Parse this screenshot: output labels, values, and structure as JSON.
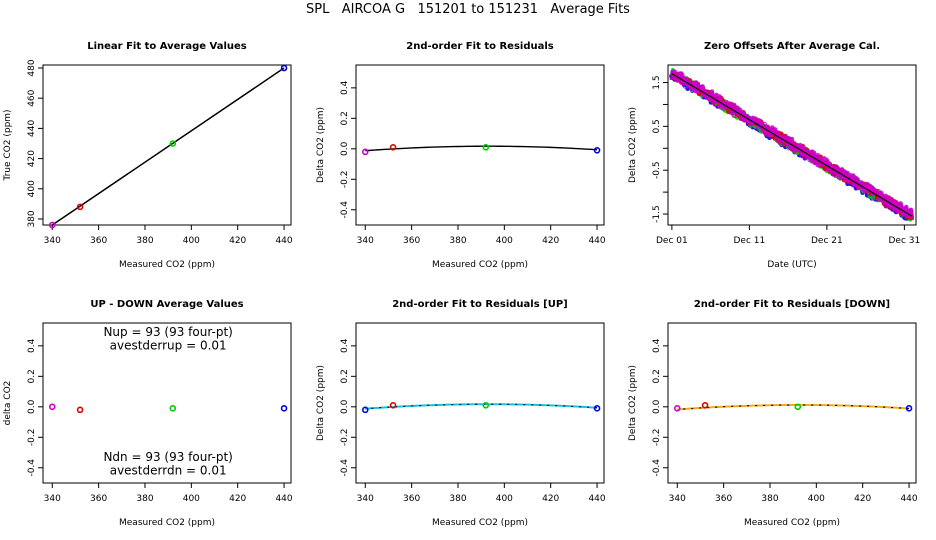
{
  "suptitle": "SPL   AIRCOA G   151201 to 151231   Average Fits",
  "chart_data": [
    {
      "type": "scatter",
      "title": "Linear Fit to Average Values",
      "xlabel": "Measured CO2 (ppm)",
      "ylabel": "True CO2 (ppm)",
      "xlim": [
        336,
        443
      ],
      "ylim": [
        376,
        482
      ],
      "xticks": [
        340,
        360,
        380,
        400,
        420,
        440
      ],
      "yticks": [
        380,
        400,
        420,
        440,
        460,
        480
      ],
      "points": [
        {
          "x": 340,
          "y": 376,
          "color": "#cc00cc"
        },
        {
          "x": 352,
          "y": 388,
          "color": "#e00000"
        },
        {
          "x": 392,
          "y": 430,
          "color": "#00cc00"
        },
        {
          "x": 440,
          "y": 480,
          "color": "#0000dd"
        }
      ],
      "lines": [
        {
          "x": [
            340,
            440
          ],
          "y": [
            376,
            480
          ],
          "color": "#000000"
        }
      ]
    },
    {
      "type": "scatter",
      "title": "2nd-order Fit to Residuals",
      "xlabel": "Measured CO2 (ppm)",
      "ylabel": "Delta CO2 (ppm)",
      "xlim": [
        336,
        443
      ],
      "ylim": [
        -0.5,
        0.55
      ],
      "xticks": [
        340,
        360,
        380,
        400,
        420,
        440
      ],
      "yticks": [
        -0.4,
        -0.2,
        0.0,
        0.2,
        0.4
      ],
      "points": [
        {
          "x": 340,
          "y": -0.02,
          "color": "#cc00cc"
        },
        {
          "x": 352,
          "y": 0.01,
          "color": "#e00000"
        },
        {
          "x": 392,
          "y": 0.01,
          "color": "#00cc00"
        },
        {
          "x": 440,
          "y": -0.01,
          "color": "#0000dd"
        }
      ],
      "curves": [
        {
          "type": "quadratic",
          "a": -1.05e-05,
          "h": 393,
          "k": 0.017,
          "xrange": [
            340,
            440
          ],
          "color": "#000000"
        }
      ]
    },
    {
      "type": "line",
      "title": "Zero Offsets After Average Cal.",
      "xlabel": "Date (UTC)",
      "ylabel": "Delta CO2 (ppm)",
      "xlim": [
        -0.5,
        31.5
      ],
      "ylim": [
        -1.75,
        1.9
      ],
      "xticks": [
        0,
        10,
        20,
        30
      ],
      "xticklabels": [
        "Dec 01",
        "Dec 11",
        "Dec 21",
        "Dec 31"
      ],
      "yticks": [
        -1.5,
        -1.0,
        -0.5,
        0.0,
        0.5,
        1.0,
        1.5
      ],
      "yticklabels": [
        "-1.5",
        "",
        "-0.5",
        "",
        "0.5",
        "",
        "1.5"
      ],
      "trend": {
        "x": [
          0,
          31
        ],
        "y": [
          1.7,
          -1.55
        ]
      },
      "series_colors": [
        "#0000dd",
        "#00cc00",
        "#e00000",
        "#cc00cc"
      ],
      "fit_color": "#000000"
    },
    {
      "type": "scatter",
      "title": "UP - DOWN Average Values",
      "xlabel": "Measured CO2 (ppm)",
      "ylabel": "delta CO2",
      "xlim": [
        336,
        443
      ],
      "ylim": [
        -0.5,
        0.55
      ],
      "xticks": [
        340,
        360,
        380,
        400,
        420,
        440
      ],
      "yticks": [
        -0.4,
        -0.2,
        0.0,
        0.2,
        0.4
      ],
      "points": [
        {
          "x": 340,
          "y": 0.0,
          "color": "#cc00cc"
        },
        {
          "x": 352,
          "y": -0.02,
          "color": "#e00000"
        },
        {
          "x": 392,
          "y": -0.01,
          "color": "#00cc00"
        },
        {
          "x": 440,
          "y": -0.01,
          "color": "#0000dd"
        }
      ],
      "annotations": [
        {
          "text": "Nup = 93 (93 four-pt)",
          "x": 390,
          "y": 0.465
        },
        {
          "text": "avestderrup =  0.01",
          "x": 390,
          "y": 0.375
        },
        {
          "text": "Ndn = 93 (93 four-pt)",
          "x": 390,
          "y": -0.355
        },
        {
          "text": "avestderrdn =  0.01",
          "x": 390,
          "y": -0.445
        }
      ]
    },
    {
      "type": "scatter",
      "title": "2nd-order Fit to Residuals [UP]",
      "xlabel": "Measured CO2 (ppm)",
      "ylabel": "Delta CO2 (ppm)",
      "xlim": [
        336,
        443
      ],
      "ylim": [
        -0.5,
        0.55
      ],
      "xticks": [
        340,
        360,
        380,
        400,
        420,
        440
      ],
      "yticks": [
        -0.4,
        -0.2,
        0.0,
        0.2,
        0.4
      ],
      "points": [
        {
          "x": 340,
          "y": -0.02,
          "color": "#0000dd"
        },
        {
          "x": 352,
          "y": 0.01,
          "color": "#e00000"
        },
        {
          "x": 392,
          "y": 0.01,
          "color": "#00cc00"
        },
        {
          "x": 440,
          "y": -0.01,
          "color": "#0000dd"
        }
      ],
      "curves": [
        {
          "type": "quadratic",
          "a": -1.05e-05,
          "h": 393,
          "k": 0.017,
          "xrange": [
            340,
            440
          ],
          "color": "#000000"
        },
        {
          "type": "quadratic",
          "a": -1.05e-05,
          "h": 393,
          "k": 0.017,
          "xrange": [
            340,
            440
          ],
          "color": "#00ccee",
          "dashed": true
        }
      ]
    },
    {
      "type": "scatter",
      "title": "2nd-order Fit to Residuals [DOWN]",
      "xlabel": "Measured CO2 (ppm)",
      "ylabel": "Delta CO2 (ppm)",
      "xlim": [
        336,
        443
      ],
      "ylim": [
        -0.5,
        0.55
      ],
      "xticks": [
        340,
        360,
        380,
        400,
        420,
        440
      ],
      "yticks": [
        -0.4,
        -0.2,
        0.0,
        0.2,
        0.4
      ],
      "points": [
        {
          "x": 340,
          "y": -0.01,
          "color": "#cc00cc"
        },
        {
          "x": 352,
          "y": 0.01,
          "color": "#e00000"
        },
        {
          "x": 392,
          "y": 0.0,
          "color": "#00cc00"
        },
        {
          "x": 440,
          "y": -0.01,
          "color": "#0000dd"
        }
      ],
      "curves": [
        {
          "type": "quadratic",
          "a": -1.05e-05,
          "h": 393,
          "k": 0.012,
          "xrange": [
            340,
            440
          ],
          "color": "#000000"
        },
        {
          "type": "quadratic",
          "a": -1.05e-05,
          "h": 393,
          "k": 0.012,
          "xrange": [
            340,
            440
          ],
          "color": "#ffaa00",
          "dashed": true
        }
      ]
    }
  ]
}
